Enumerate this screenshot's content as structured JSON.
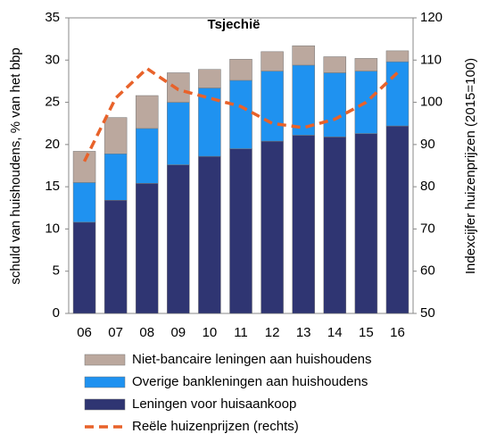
{
  "chart_data": {
    "type": "bar",
    "title": "Tsjechië",
    "y_label": "schuld van huishoudens, % van het bbp",
    "y2_label": "Indexcijfer huizenprijzen (2015=100)",
    "categories": [
      "06",
      "07",
      "08",
      "09",
      "10",
      "11",
      "12",
      "13",
      "14",
      "15",
      "16"
    ],
    "series": [
      {
        "name": "Leningen voor huisaankoop",
        "color": "#2f3572",
        "values": [
          10.8,
          13.4,
          15.4,
          17.6,
          18.6,
          19.5,
          20.4,
          21.1,
          20.9,
          21.3,
          22.2
        ]
      },
      {
        "name": "Overige bankleningen aan huishoudens",
        "color": "#1f92f0",
        "values": [
          4.7,
          5.5,
          6.5,
          7.4,
          8.1,
          8.1,
          8.3,
          8.3,
          7.6,
          7.4,
          7.6
        ]
      },
      {
        "name": "Niet-bancaire leningen aan huishoudens",
        "color": "#bba89e",
        "values": [
          3.7,
          4.3,
          3.9,
          3.5,
          2.2,
          2.5,
          2.3,
          2.3,
          1.9,
          1.5,
          1.3
        ]
      },
      {
        "name": "Reële huizenprijzen (rechts)",
        "color": "#e8622a",
        "type": "line",
        "axis": "y2",
        "values": [
          86,
          101,
          108,
          103,
          101,
          99,
          95,
          94,
          96,
          100,
          107
        ]
      }
    ],
    "ylim": [
      0,
      35
    ],
    "yticks": [
      0,
      5,
      10,
      15,
      20,
      25,
      30,
      35
    ],
    "y2lim": [
      50,
      120
    ],
    "y2ticks": [
      50,
      60,
      70,
      80,
      90,
      100,
      110,
      120
    ]
  }
}
